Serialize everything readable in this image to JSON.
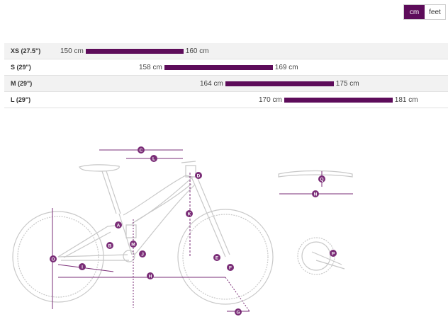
{
  "unit_toggle": {
    "options": [
      {
        "label": "cm",
        "active": true
      },
      {
        "label": "feet",
        "active": false
      }
    ]
  },
  "size_rows": [
    {
      "size": "XS (27.5\")",
      "min_label": "150 cm",
      "max_label": "160 cm",
      "min": 150,
      "max": 160
    },
    {
      "size": "S (29\")",
      "min_label": "158 cm",
      "max_label": "169 cm",
      "min": 158,
      "max": 169
    },
    {
      "size": "M (29\")",
      "min_label": "164 cm",
      "max_label": "175 cm",
      "min": 164,
      "max": 175
    },
    {
      "size": "L (29\")",
      "min_label": "170 cm",
      "max_label": "181 cm",
      "min": 170,
      "max": 181
    }
  ],
  "geometry_labels": [
    "A",
    "B",
    "C",
    "D",
    "E",
    "F",
    "G",
    "H",
    "I",
    "J",
    "K",
    "L",
    "M",
    "N",
    "O",
    "P",
    "Q"
  ],
  "colors": {
    "accent": "#5d0c5a",
    "row_alt": "#f2f2f2",
    "frame_line": "#c8c8c8",
    "dim_line": "#7a2d77"
  }
}
